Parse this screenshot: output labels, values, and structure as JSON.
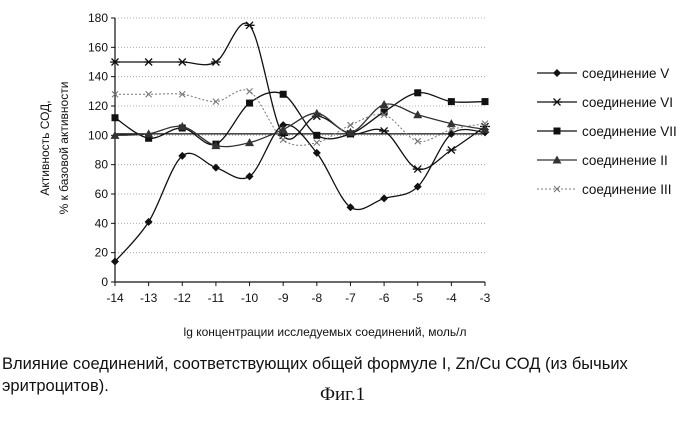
{
  "chart_data": {
    "type": "line",
    "x": [
      -14,
      -13,
      -12,
      -11,
      -10,
      -9,
      -8,
      -7,
      -6,
      -5,
      -4,
      -3
    ],
    "x_ticks": [
      "-14",
      "-13",
      "-12",
      "-11",
      "-10",
      "-9",
      "-8",
      "-7",
      "-6",
      "-5",
      "-4",
      "-3"
    ],
    "y_ticks": [
      "0",
      "20",
      "40",
      "60",
      "80",
      "100",
      "120",
      "140",
      "160",
      "180"
    ],
    "xlim": [
      -14,
      -3
    ],
    "ylim": [
      0,
      180
    ],
    "xlabel": "lg концентрации исследуемых соединений, моль/л",
    "ylabel_line1": "Активность СОД,",
    "ylabel_line2": "% к базовой активности",
    "reference_line": 101,
    "grid": "horizontal",
    "legend_position": "right",
    "series": [
      {
        "name": "соединение V",
        "marker": "diamond",
        "color": "#111111",
        "dash": "none",
        "values": [
          14,
          41,
          86,
          78,
          72,
          107,
          88,
          51,
          57,
          65,
          101,
          102
        ]
      },
      {
        "name": "соединение VI",
        "marker": "star",
        "color": "#111111",
        "dash": "none",
        "values": [
          150,
          150,
          150,
          150,
          175,
          100,
          113,
          101,
          103,
          77,
          90,
          106
        ]
      },
      {
        "name": "соединение VII",
        "marker": "square",
        "color": "#111111",
        "dash": "none",
        "values": [
          112,
          98,
          105,
          94,
          122,
          128,
          100,
          101,
          116,
          129,
          123,
          123
        ]
      },
      {
        "name": "соединение II",
        "marker": "triangle",
        "color": "#333333",
        "dash": "none",
        "values": [
          100,
          101,
          106,
          93,
          95,
          104,
          115,
          102,
          121,
          114,
          108,
          104
        ]
      },
      {
        "name": "соединение III",
        "marker": "x",
        "color": "#777777",
        "dash": "2,2",
        "values": [
          128,
          128,
          128,
          123,
          130,
          97,
          95,
          107,
          114,
          96,
          104,
          108
        ]
      }
    ]
  },
  "caption": "Влияние соединений, соответствующих общей формуле I, Zn/Cu СОД (из бычьих эритроцитов).",
  "figure_label": "Фиг.1"
}
